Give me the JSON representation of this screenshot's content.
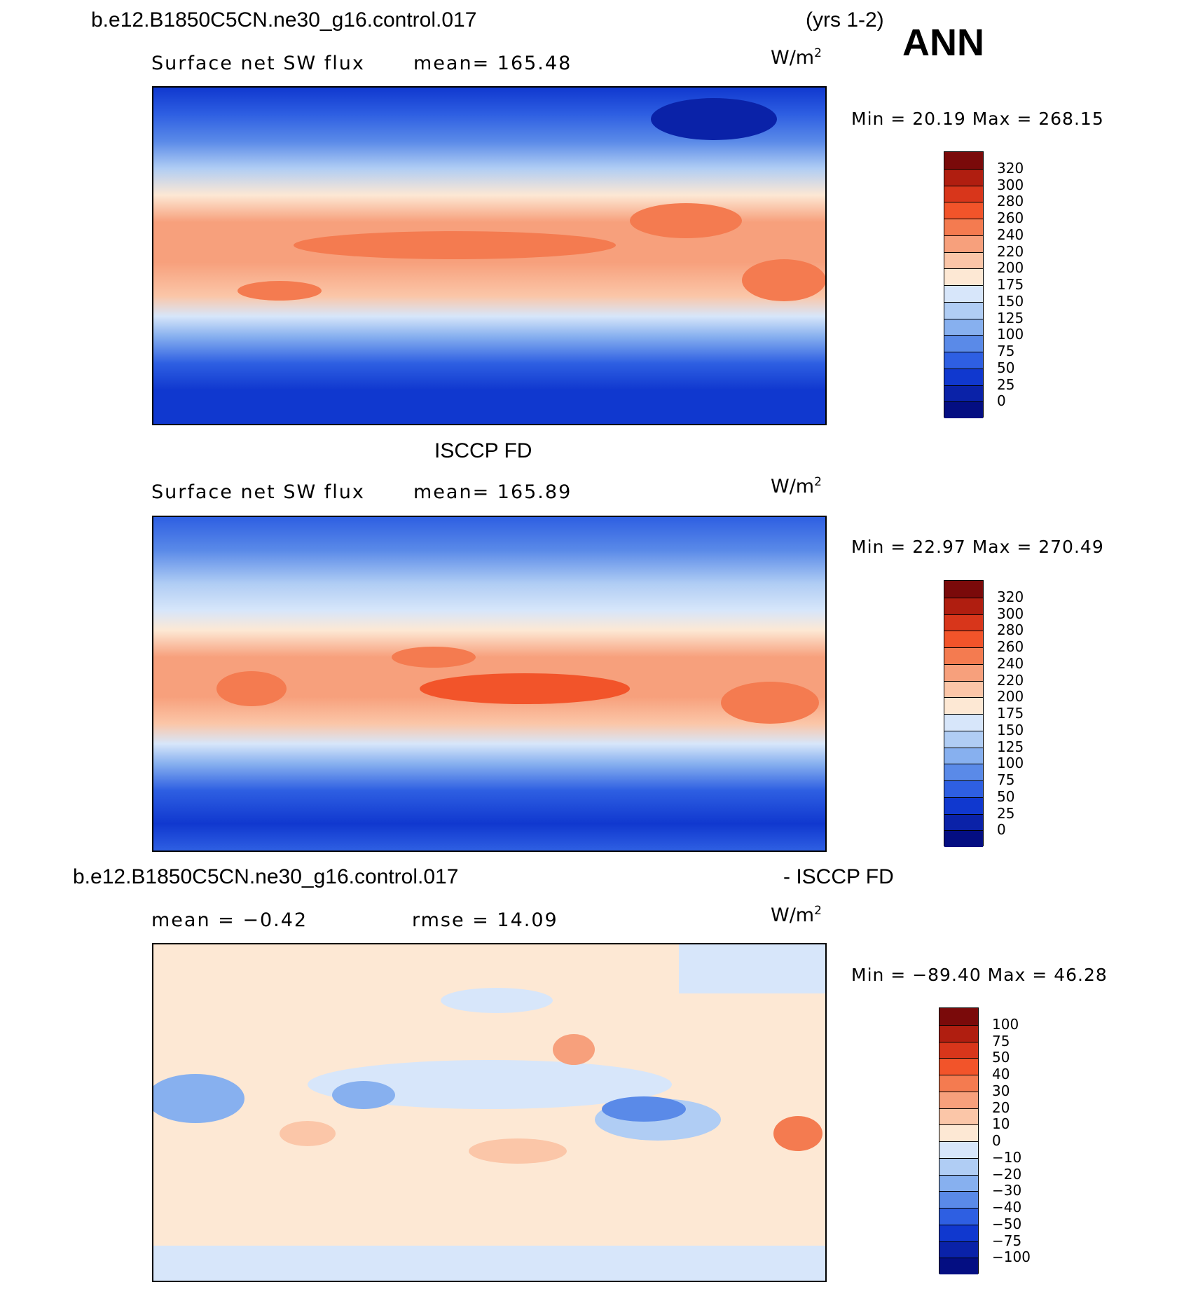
{
  "header": {
    "case_name": "b.e12.B1850C5CN.ne30_g16.control.017",
    "years": "(yrs 1-2)",
    "season": "ANN"
  },
  "panels": [
    {
      "title": "",
      "variable": "Surface net SW flux",
      "stat_left": "mean=  165.48",
      "stat_right": "",
      "units": "W/m",
      "units_exp": "2",
      "min_max": "Min =   20.19  Max  =  268.15",
      "colorbar_ticks": [
        "320",
        "300",
        "280",
        "260",
        "240",
        "220",
        "200",
        "175",
        "150",
        "125",
        "100",
        "75",
        "50",
        "25",
        "0"
      ],
      "colorbar_colors": [
        "#7a0a0a",
        "#b01e10",
        "#d8361b",
        "#f2542a",
        "#f47b50",
        "#f7a07c",
        "#fbc6a8",
        "#fde8d4",
        "#d7e6fa",
        "#b0cdf4",
        "#87b0ef",
        "#5a8ae8",
        "#2e5fe2",
        "#1038cf",
        "#0a22a8",
        "#040e82"
      ]
    },
    {
      "title": "ISCCP FD",
      "variable": "Surface net SW flux",
      "stat_left": "mean=  165.89",
      "stat_right": "",
      "units": "W/m",
      "units_exp": "2",
      "min_max": "Min =   22.97  Max  =  270.49",
      "colorbar_ticks": [
        "320",
        "300",
        "280",
        "260",
        "240",
        "220",
        "200",
        "175",
        "150",
        "125",
        "100",
        "75",
        "50",
        "25",
        "0"
      ],
      "colorbar_colors": [
        "#7a0a0a",
        "#b01e10",
        "#d8361b",
        "#f2542a",
        "#f47b50",
        "#f7a07c",
        "#fbc6a8",
        "#fde8d4",
        "#d7e6fa",
        "#b0cdf4",
        "#87b0ef",
        "#5a8ae8",
        "#2e5fe2",
        "#1038cf",
        "#0a22a8",
        "#040e82"
      ]
    },
    {
      "title": "b.e12.B1850C5CN.ne30_g16.control.017",
      "title_right": "- ISCCP FD",
      "variable": "",
      "stat_left": "mean  =   −0.42",
      "stat_right": "rmse  =    14.09",
      "units": "W/m",
      "units_exp": "2",
      "min_max": "Min  = −89.40  Max  =    46.28",
      "colorbar_ticks": [
        "100",
        "75",
        "50",
        "40",
        "30",
        "20",
        "10",
        "0",
        "−10",
        "−20",
        "−30",
        "−40",
        "−50",
        "−75",
        "−100"
      ],
      "colorbar_colors": [
        "#7a0a0a",
        "#b01e10",
        "#d8361b",
        "#f2542a",
        "#f47b50",
        "#f7a07c",
        "#fbc6a8",
        "#fde8d4",
        "#d7e6fa",
        "#b0cdf4",
        "#87b0ef",
        "#5a8ae8",
        "#2e5fe2",
        "#1038cf",
        "#0a22a8",
        "#040e82"
      ]
    }
  ]
}
